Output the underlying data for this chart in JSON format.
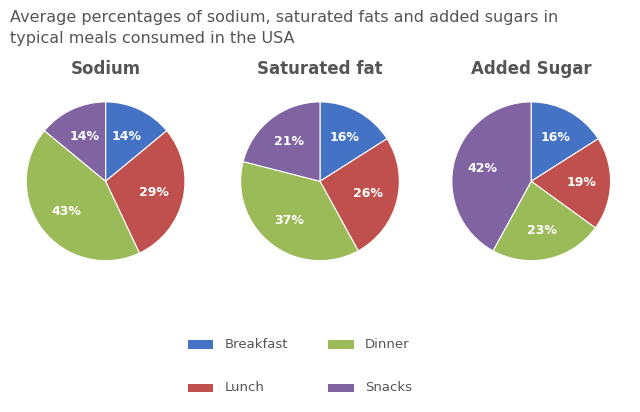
{
  "title": "Average percentages of sodium, saturated fats and added sugars in\ntypical meals consumed in the USA",
  "title_fontsize": 11.5,
  "charts": [
    {
      "label": "Sodium",
      "values": [
        14,
        29,
        43,
        14
      ],
      "order": [
        "Breakfast",
        "Lunch",
        "Dinner",
        "Snacks"
      ]
    },
    {
      "label": "Saturated fat",
      "values": [
        16,
        26,
        37,
        21
      ],
      "order": [
        "Breakfast",
        "Lunch",
        "Dinner",
        "Snacks"
      ]
    },
    {
      "label": "Added Sugar",
      "values": [
        16,
        19,
        23,
        42
      ],
      "order": [
        "Breakfast",
        "Lunch",
        "Dinner",
        "Snacks"
      ]
    }
  ],
  "colors": {
    "Breakfast": "#4472C4",
    "Lunch": "#C0504D",
    "Dinner": "#9BBB59",
    "Snacks": "#8064A2"
  },
  "background_color": "#ffffff",
  "text_color": "#555555",
  "label_fontsize": 9,
  "subtitle_fontsize": 12,
  "startangle": 90
}
